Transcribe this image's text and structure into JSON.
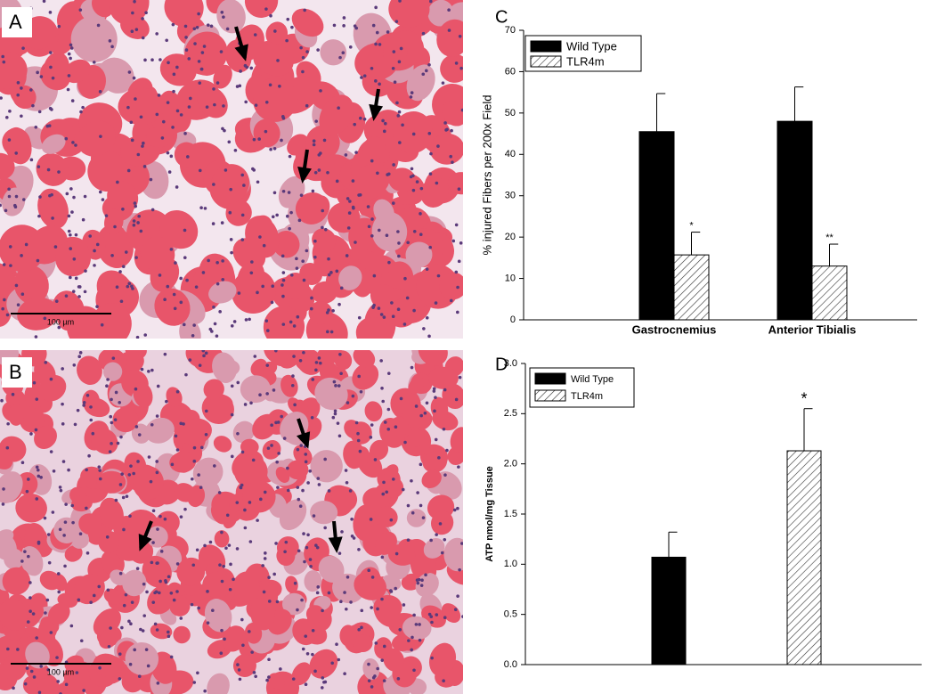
{
  "panels": [
    {
      "letter": "A",
      "scale": "100 µm"
    },
    {
      "letter": "B",
      "scale": "100 µm"
    }
  ],
  "chart_data": [
    {
      "type": "bar",
      "letter": "C",
      "ylabel": "% injured Fibers per 200x Field",
      "categories": [
        "Gastrocnemius",
        "Anterior Tibialis"
      ],
      "series": [
        {
          "name": "Wild Type",
          "color": "#000000",
          "values": [
            45.5,
            48
          ],
          "errors": [
            9.2,
            8.3
          ]
        },
        {
          "name": "TLR4m",
          "color": "#ffffff",
          "pattern": "hatch",
          "values": [
            15.7,
            13
          ],
          "errors": [
            5.5,
            5.3
          ]
        }
      ],
      "annotations": [
        {
          "series": 1,
          "category": 0,
          "text": "*"
        },
        {
          "series": 1,
          "category": 1,
          "text": "**"
        }
      ],
      "ylim": [
        0,
        70
      ],
      "yticks": [
        0,
        10,
        20,
        30,
        40,
        50,
        60,
        70
      ],
      "legend": "upper left"
    },
    {
      "type": "bar",
      "letter": "D",
      "ylabel": "ATP nmol/mg Tissue",
      "categories": [
        null,
        null
      ],
      "series": [
        {
          "name": "Wild Type",
          "color": "#000000",
          "values": [
            1.07,
            null
          ],
          "errors": [
            0.25,
            null
          ]
        },
        {
          "name": "TLR4m",
          "color": "#ffffff",
          "pattern": "hatch",
          "values": [
            null,
            2.13
          ],
          "errors": [
            null,
            0.42
          ]
        }
      ],
      "annotations": [
        {
          "series": 1,
          "category": 1,
          "text": "*"
        }
      ],
      "ylim": [
        0,
        3
      ],
      "yticks": [
        {
          "value": 0,
          "label": "0.0"
        },
        {
          "value": 0.5,
          "label": "0.5"
        },
        {
          "value": 1,
          "label": "1.0"
        },
        {
          "value": 1.5,
          "label": "1.5"
        },
        {
          "value": 2,
          "label": "2.0"
        },
        {
          "value": 2.5,
          "label": "2.5"
        },
        {
          "value": 3,
          "label": "3.0"
        }
      ],
      "legend": "upper left"
    }
  ]
}
